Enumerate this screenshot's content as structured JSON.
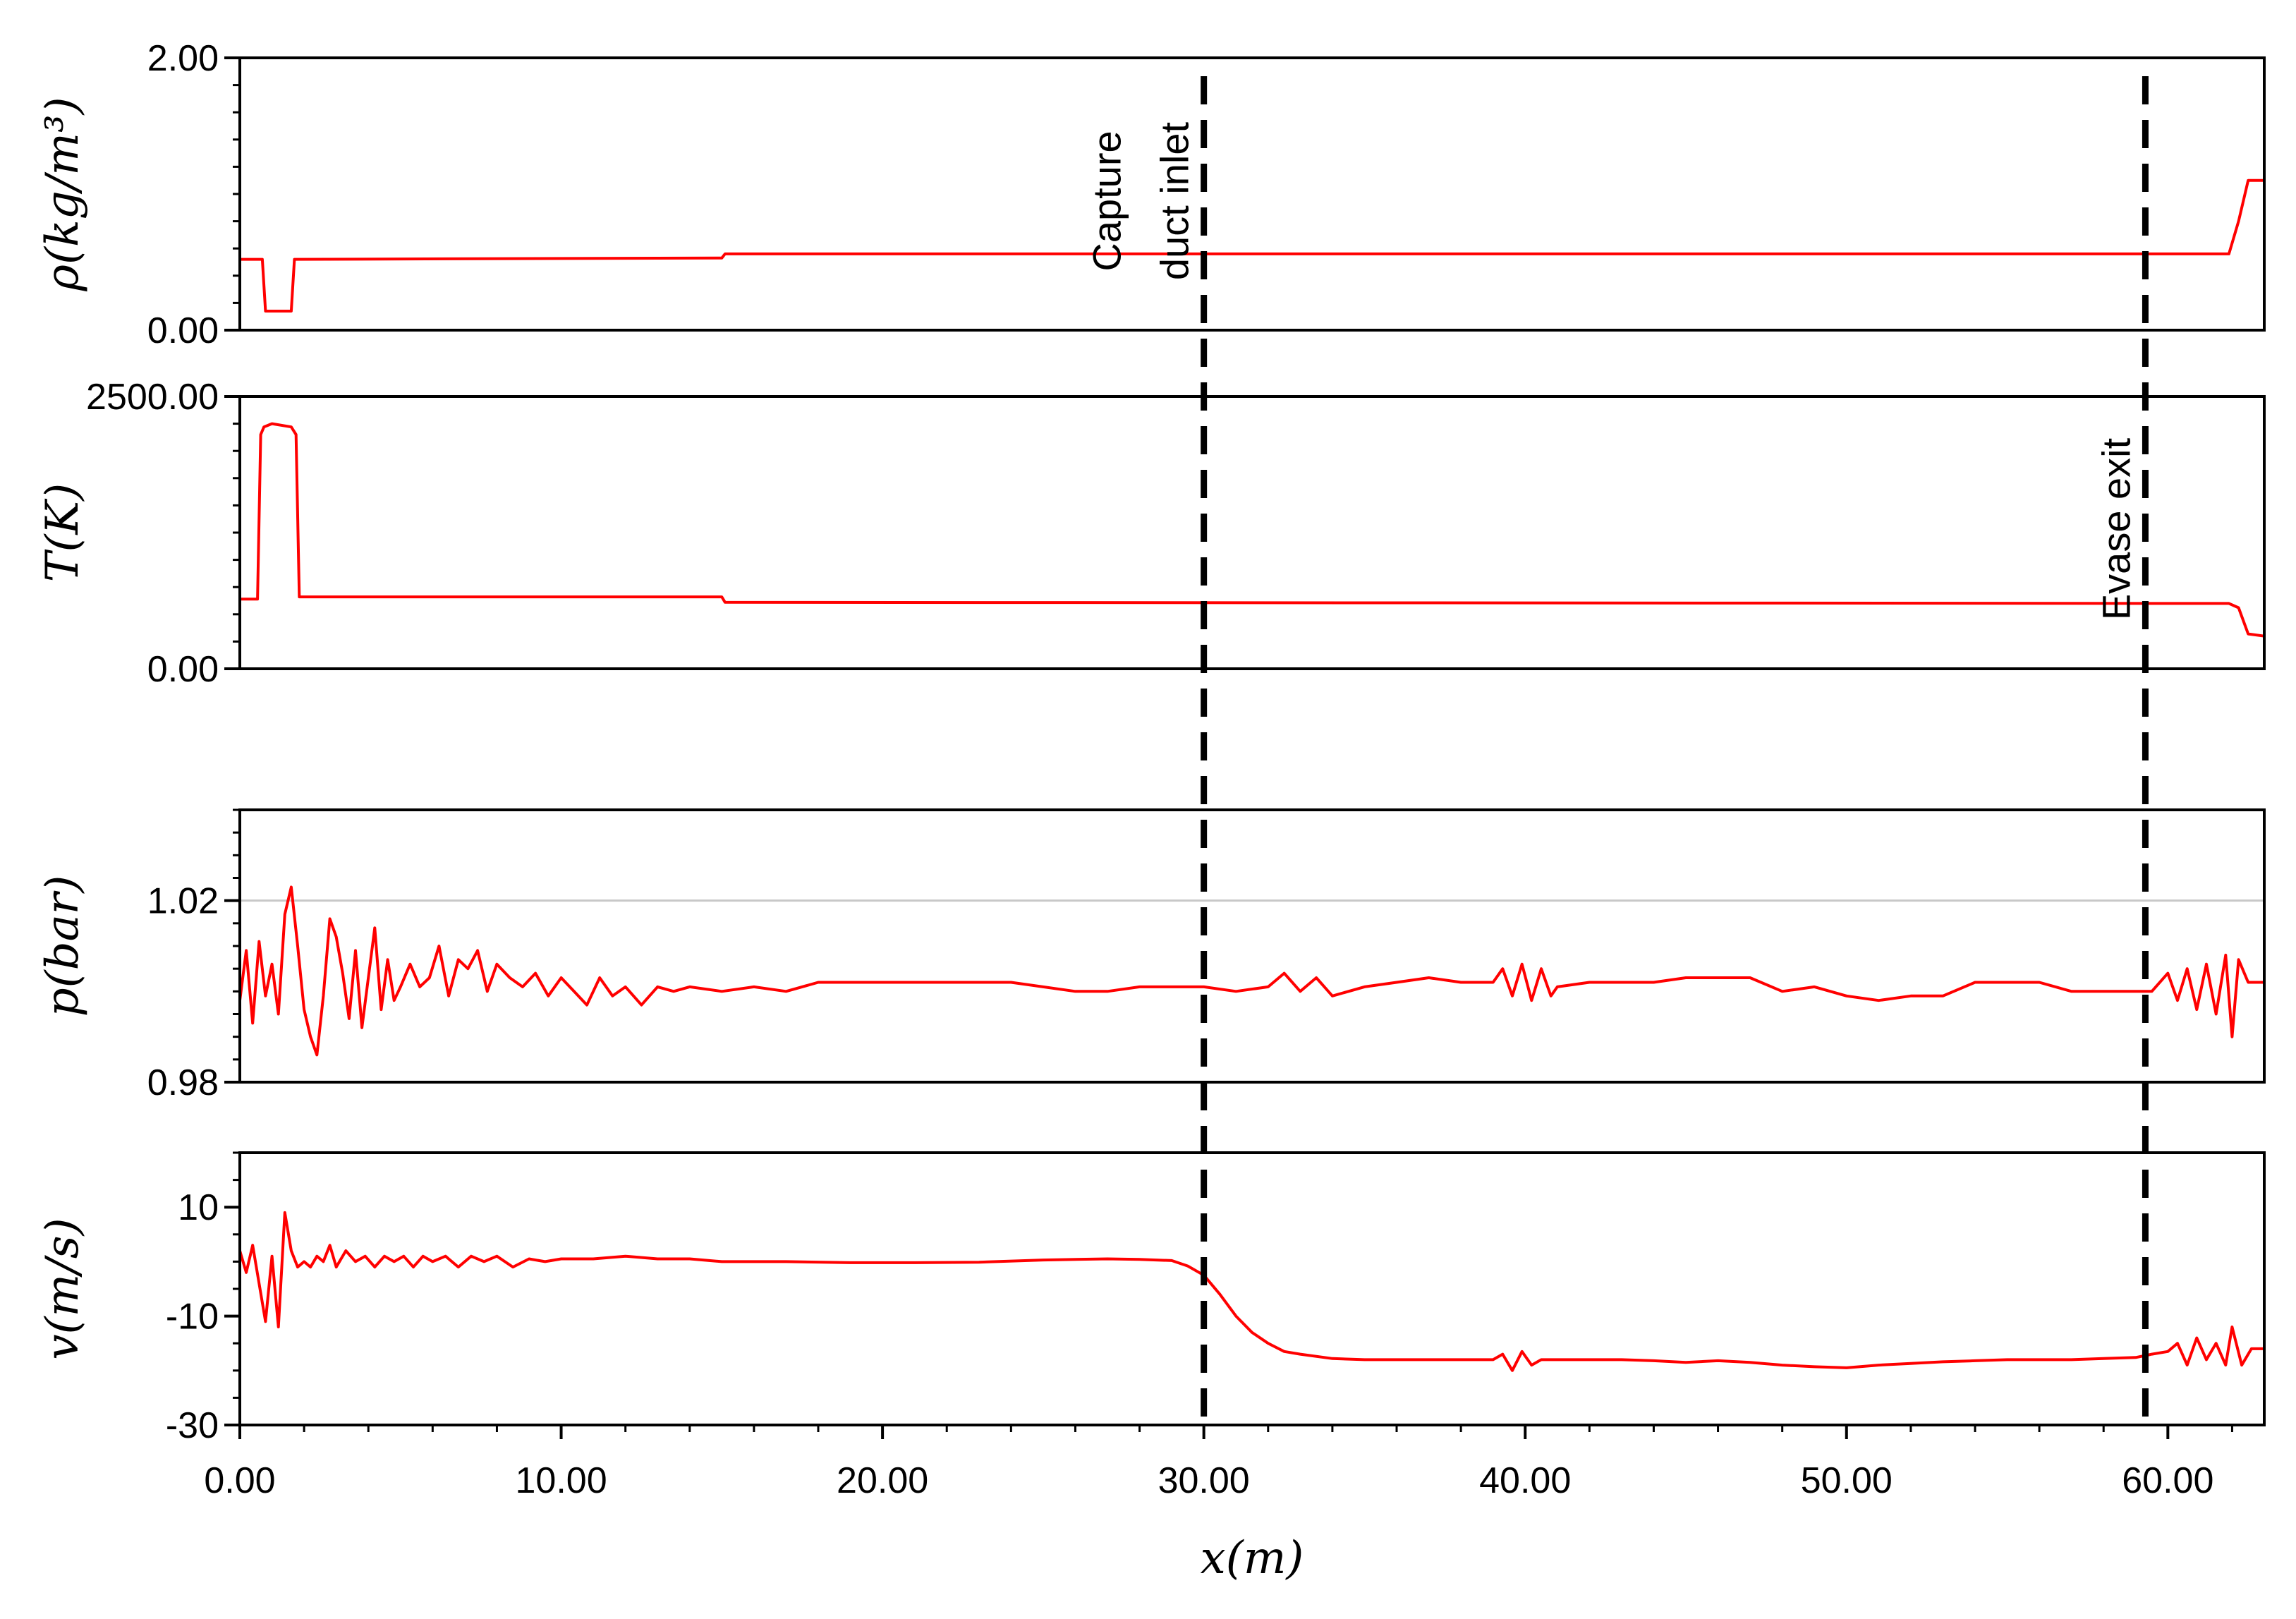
{
  "chart_data": {
    "type": "line",
    "line_color": "#ff0000",
    "marker_line_color": "#000000",
    "x_axis": {
      "label": "x(m)",
      "range": [
        0,
        63
      ],
      "ticks": [
        0,
        10,
        20,
        30,
        40,
        50,
        60
      ],
      "tick_labels": [
        "0.00",
        "10.00",
        "20.00",
        "30.00",
        "40.00",
        "50.00",
        "60.00"
      ],
      "minor_step": 2
    },
    "markers": [
      {
        "x": 30.0,
        "label_lines": [
          "Capture",
          "duct inlet"
        ]
      },
      {
        "x": 59.3,
        "label_lines": [
          "Evase exit"
        ]
      }
    ],
    "panels": [
      {
        "id": "density",
        "ylabel": "ρ(kg/m³)",
        "ylim": [
          0,
          2
        ],
        "y_ticks": [
          0,
          2
        ],
        "y_tick_labels": [
          "0.00",
          "2.00"
        ],
        "y_minor_step": 0.2,
        "gridlines": [],
        "x": [
          0,
          0.7,
          0.8,
          1.6,
          1.7,
          15,
          15.1,
          61.9,
          62.2,
          62.5,
          63
        ],
        "y": [
          0.52,
          0.52,
          0.14,
          0.14,
          0.52,
          0.53,
          0.56,
          0.56,
          0.8,
          1.1,
          1.1
        ]
      },
      {
        "id": "temperature",
        "ylabel": "T(K)",
        "ylim": [
          0,
          2500
        ],
        "y_ticks": [
          0,
          2500
        ],
        "y_tick_labels": [
          "0.00",
          "2500.00"
        ],
        "y_minor_step": 250,
        "gridlines": [],
        "x": [
          0,
          0.55,
          0.65,
          0.75,
          1.0,
          1.6,
          1.75,
          1.85,
          15,
          15.1,
          61.9,
          62.2,
          62.5,
          63
        ],
        "y": [
          640,
          640,
          2150,
          2220,
          2250,
          2220,
          2150,
          660,
          660,
          610,
          600,
          560,
          320,
          300
        ]
      },
      {
        "id": "pressure",
        "ylabel": "p(bar)",
        "ylim": [
          0.98,
          1.04
        ],
        "y_ticks": [
          0.98,
          1.02
        ],
        "y_tick_labels": [
          "0.98",
          "1.02"
        ],
        "y_minor_step": 0.005,
        "gridlines": [
          1.02
        ],
        "x": [
          0,
          0.2,
          0.4,
          0.6,
          0.8,
          1.0,
          1.2,
          1.4,
          1.6,
          1.8,
          2.0,
          2.2,
          2.4,
          2.6,
          2.8,
          3.0,
          3.2,
          3.4,
          3.6,
          3.8,
          4.0,
          4.2,
          4.4,
          4.6,
          4.8,
          5.0,
          5.3,
          5.6,
          5.9,
          6.2,
          6.5,
          6.8,
          7.1,
          7.4,
          7.7,
          8.0,
          8.4,
          8.8,
          9.2,
          9.6,
          10.0,
          10.4,
          10.8,
          11.2,
          11.6,
          12.0,
          12.5,
          13.0,
          13.5,
          14.0,
          15,
          16,
          17,
          18,
          19,
          20,
          22,
          24,
          26,
          27,
          28,
          29,
          30,
          31,
          32,
          32.5,
          33,
          33.5,
          34,
          35,
          36,
          37,
          38,
          39,
          39.3,
          39.6,
          39.9,
          40.2,
          40.5,
          40.8,
          41,
          42,
          43,
          44,
          45,
          46,
          47,
          48,
          49,
          50,
          51,
          52,
          53,
          54,
          55,
          56,
          57,
          58,
          59,
          59.5,
          60,
          60.3,
          60.6,
          60.9,
          61.2,
          61.5,
          61.8,
          62.0,
          62.2,
          62.5,
          63
        ],
        "y": [
          0.998,
          1.009,
          0.993,
          1.011,
          0.999,
          1.006,
          0.995,
          1.017,
          1.023,
          1.01,
          0.996,
          0.99,
          0.986,
          0.999,
          1.016,
          1.012,
          1.004,
          0.994,
          1.009,
          0.992,
          1.003,
          1.014,
          0.996,
          1.007,
          0.998,
          1.001,
          1.006,
          1.001,
          1.003,
          1.01,
          0.999,
          1.007,
          1.005,
          1.009,
          1.0,
          1.006,
          1.003,
          1.001,
          1.004,
          0.999,
          1.003,
          1.0,
          0.997,
          1.003,
          0.999,
          1.001,
          0.997,
          1.001,
          1.0,
          1.001,
          1.0,
          1.001,
          1.0,
          1.002,
          1.002,
          1.002,
          1.002,
          1.002,
          1.0,
          1.0,
          1.001,
          1.001,
          1.001,
          1.0,
          1.001,
          1.004,
          1.0,
          1.003,
          0.999,
          1.001,
          1.002,
          1.003,
          1.002,
          1.002,
          1.005,
          0.999,
          1.006,
          0.998,
          1.005,
          0.999,
          1.001,
          1.002,
          1.002,
          1.002,
          1.003,
          1.003,
          1.003,
          1.0,
          1.001,
          0.999,
          0.998,
          0.999,
          0.999,
          1.002,
          1.002,
          1.002,
          1.0,
          1.0,
          1.0,
          1.0,
          1.004,
          0.998,
          1.005,
          0.996,
          1.006,
          0.995,
          1.008,
          0.99,
          1.007,
          1.002,
          1.002
        ]
      },
      {
        "id": "velocity",
        "ylabel": "v(m/s)",
        "ylim": [
          -30,
          20
        ],
        "y_ticks": [
          -30,
          -10,
          10
        ],
        "y_tick_labels": [
          "-30",
          "-10",
          "10"
        ],
        "y_minor_step": 5,
        "gridlines": [],
        "x": [
          0,
          0.2,
          0.4,
          0.6,
          0.8,
          1.0,
          1.2,
          1.4,
          1.6,
          1.8,
          2.0,
          2.2,
          2.4,
          2.6,
          2.8,
          3.0,
          3.3,
          3.6,
          3.9,
          4.2,
          4.5,
          4.8,
          5.1,
          5.4,
          5.7,
          6.0,
          6.4,
          6.8,
          7.2,
          7.6,
          8.0,
          8.5,
          9.0,
          9.5,
          10,
          11,
          12,
          13,
          14,
          15,
          17,
          19,
          21,
          23,
          25,
          27,
          28,
          29,
          29.5,
          30,
          30.5,
          31,
          31.5,
          32,
          32.5,
          33,
          34,
          35,
          36,
          37,
          38,
          39,
          39.3,
          39.6,
          39.9,
          40.2,
          40.5,
          41,
          42,
          43,
          44,
          45,
          46,
          47,
          48,
          49,
          50,
          51,
          52,
          53,
          54,
          55,
          56,
          57,
          58,
          59,
          59.5,
          60,
          60.3,
          60.6,
          60.9,
          61.2,
          61.5,
          61.8,
          62.0,
          62.3,
          62.6,
          63
        ],
        "y": [
          2,
          -2,
          3,
          -4,
          -11,
          1,
          -12,
          9,
          2,
          -1,
          0,
          -1,
          1,
          0,
          3,
          -1,
          2,
          0,
          1,
          -1,
          1,
          0,
          1,
          -1,
          1,
          0,
          1,
          -1,
          1,
          0,
          1,
          -1,
          0.5,
          0,
          0.5,
          0.5,
          1,
          0.5,
          0.5,
          0,
          0,
          -0.2,
          -0.2,
          -0.1,
          0.3,
          0.5,
          0.4,
          0.2,
          -0.8,
          -2.5,
          -6,
          -10,
          -13,
          -15,
          -16.5,
          -17,
          -17.8,
          -18,
          -18,
          -18,
          -18,
          -18,
          -17,
          -20,
          -16.5,
          -19,
          -18,
          -18,
          -18,
          -18,
          -18.2,
          -18.5,
          -18.2,
          -18.5,
          -19,
          -19.3,
          -19.5,
          -19,
          -18.7,
          -18.4,
          -18.2,
          -18,
          -18,
          -18,
          -17.8,
          -17.6,
          -17,
          -16.5,
          -15,
          -19,
          -14,
          -18,
          -15,
          -19,
          -12,
          -19,
          -16,
          -16
        ]
      }
    ]
  }
}
